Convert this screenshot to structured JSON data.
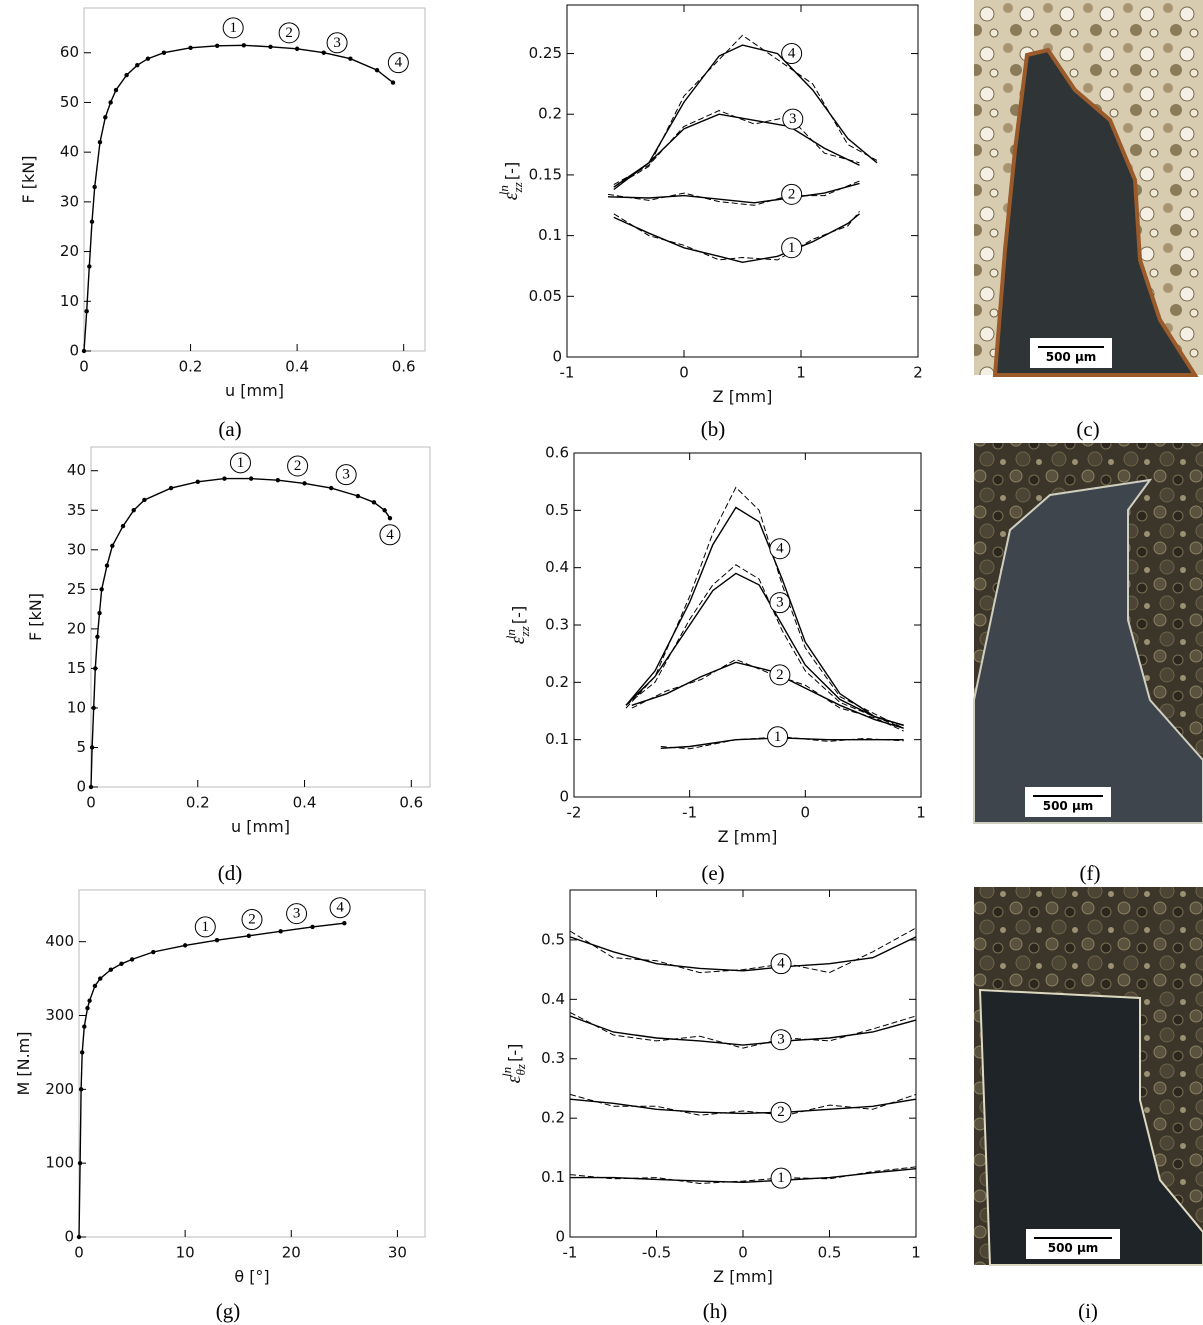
{
  "chart_data": [
    {
      "type": "scatter",
      "caption": "(a)",
      "x_label": "u [mm]",
      "y_label": "F [kN]",
      "xlim": [
        0,
        0.64
      ],
      "ylim": [
        0,
        69
      ],
      "xticks": [
        0,
        0.2,
        0.4,
        0.6
      ],
      "yticks": [
        0,
        10,
        20,
        30,
        40,
        50,
        60
      ],
      "series": [
        {
          "color": "#000000",
          "style": "solid",
          "x": [
            0,
            0.005,
            0.01,
            0.015,
            0.02,
            0.03,
            0.04,
            0.05,
            0.06,
            0.08,
            0.1,
            0.12,
            0.15,
            0.2,
            0.25,
            0.3,
            0.35,
            0.4,
            0.45,
            0.5,
            0.55,
            0.58
          ],
          "y": [
            0,
            8,
            17,
            26,
            33,
            42,
            47,
            50,
            52.5,
            55.5,
            57.5,
            58.8,
            60,
            61,
            61.4,
            61.5,
            61.2,
            60.8,
            60,
            58.8,
            56.5,
            54
          ]
        }
      ],
      "annotations": [
        {
          "text": "1",
          "x": 0.28,
          "y": 65
        },
        {
          "text": "2",
          "x": 0.385,
          "y": 64
        },
        {
          "text": "3",
          "x": 0.475,
          "y": 62
        },
        {
          "text": "4",
          "x": 0.59,
          "y": 58
        }
      ]
    },
    {
      "type": "line",
      "caption": "(b)",
      "x_label": "Z [mm]",
      "y_label": {
        "symbol": "ε",
        "sub": "zz",
        "sup": "ln",
        "unit": "[-]"
      },
      "xlim": [
        -1,
        2
      ],
      "ylim": [
        0,
        0.29
      ],
      "xticks": [
        -1,
        0,
        1,
        2
      ],
      "yticks": [
        0,
        0.05,
        0.1,
        0.15,
        0.2,
        0.25
      ],
      "series": [
        {
          "color": "#000000",
          "style": "solid",
          "x": [
            -0.6,
            -0.3,
            0,
            0.3,
            0.5,
            0.8,
            1.1,
            1.4,
            1.5
          ],
          "y": [
            0.115,
            0.102,
            0.09,
            0.083,
            0.078,
            0.083,
            0.095,
            0.11,
            0.118
          ]
        },
        {
          "color": "#000000",
          "style": "dashed",
          "x": [
            -0.6,
            -0.3,
            0,
            0.3,
            0.5,
            0.8,
            1.1,
            1.4,
            1.5
          ],
          "y": [
            0.118,
            0.1,
            0.092,
            0.08,
            0.082,
            0.08,
            0.097,
            0.108,
            0.12
          ]
        },
        {
          "color": "#000000",
          "style": "solid",
          "x": [
            -0.65,
            -0.3,
            0,
            0.3,
            0.6,
            0.9,
            1.2,
            1.5
          ],
          "y": [
            0.132,
            0.131,
            0.133,
            0.13,
            0.127,
            0.131,
            0.135,
            0.143
          ]
        },
        {
          "color": "#000000",
          "style": "dashed",
          "x": [
            -0.65,
            -0.3,
            0,
            0.3,
            0.6,
            0.9,
            1.2,
            1.5
          ],
          "y": [
            0.134,
            0.129,
            0.135,
            0.128,
            0.125,
            0.133,
            0.133,
            0.145
          ]
        },
        {
          "color": "#000000",
          "style": "solid",
          "x": [
            -0.6,
            -0.3,
            0,
            0.3,
            0.6,
            0.9,
            1.2,
            1.5
          ],
          "y": [
            0.14,
            0.16,
            0.188,
            0.2,
            0.195,
            0.19,
            0.172,
            0.158
          ]
        },
        {
          "color": "#000000",
          "style": "dashed",
          "x": [
            -0.6,
            -0.3,
            0,
            0.3,
            0.6,
            0.9,
            1.2,
            1.5
          ],
          "y": [
            0.142,
            0.158,
            0.19,
            0.203,
            0.192,
            0.198,
            0.168,
            0.16
          ]
        },
        {
          "color": "#000000",
          "style": "solid",
          "x": [
            -0.6,
            -0.3,
            0,
            0.3,
            0.5,
            0.8,
            1.1,
            1.4,
            1.65
          ],
          "y": [
            0.138,
            0.16,
            0.21,
            0.248,
            0.257,
            0.25,
            0.22,
            0.18,
            0.16
          ]
        },
        {
          "color": "#000000",
          "style": "dashed",
          "x": [
            -0.6,
            -0.3,
            0,
            0.3,
            0.5,
            0.8,
            1.1,
            1.4,
            1.65
          ],
          "y": [
            0.14,
            0.157,
            0.215,
            0.245,
            0.265,
            0.245,
            0.225,
            0.175,
            0.162
          ]
        }
      ],
      "annotations": [
        {
          "text": "1",
          "x": 0.92,
          "y": 0.09
        },
        {
          "text": "2",
          "x": 0.92,
          "y": 0.134
        },
        {
          "text": "3",
          "x": 0.93,
          "y": 0.196
        },
        {
          "text": "4",
          "x": 0.92,
          "y": 0.25
        }
      ]
    },
    {
      "type": "scatter",
      "caption": "(d)",
      "x_label": "u [mm]",
      "y_label": "F [kN]",
      "xlim": [
        0,
        0.635
      ],
      "ylim": [
        0,
        43
      ],
      "xticks": [
        0,
        0.2,
        0.4,
        0.6
      ],
      "yticks": [
        0,
        5,
        10,
        15,
        20,
        25,
        30,
        35,
        40
      ],
      "series": [
        {
          "color": "#000000",
          "style": "solid",
          "x": [
            0,
            0.002,
            0.005,
            0.008,
            0.012,
            0.016,
            0.02,
            0.03,
            0.04,
            0.06,
            0.08,
            0.1,
            0.15,
            0.2,
            0.25,
            0.3,
            0.35,
            0.4,
            0.45,
            0.5,
            0.53,
            0.55,
            0.56
          ],
          "y": [
            0,
            5,
            10,
            15,
            19,
            22,
            25,
            28,
            30.5,
            33,
            35,
            36.3,
            37.8,
            38.6,
            39,
            39,
            38.8,
            38.4,
            37.8,
            36.8,
            36,
            35,
            34
          ]
        }
      ],
      "annotations": [
        {
          "text": "1",
          "x": 0.28,
          "y": 41
        },
        {
          "text": "2",
          "x": 0.387,
          "y": 40.6
        },
        {
          "text": "3",
          "x": 0.478,
          "y": 39.5
        },
        {
          "text": "4",
          "x": 0.56,
          "y": 31.9
        }
      ]
    },
    {
      "type": "line",
      "caption": "(e)",
      "x_label": "Z [mm]",
      "y_label": {
        "symbol": "ε",
        "sub": "zz",
        "sup": "ln",
        "unit": "[-]"
      },
      "xlim": [
        -2,
        1
      ],
      "ylim": [
        0,
        0.6
      ],
      "xticks": [
        -2,
        -1,
        0,
        1
      ],
      "yticks": [
        0,
        0.1,
        0.2,
        0.3,
        0.4,
        0.5,
        0.6
      ],
      "series": [
        {
          "color": "#000000",
          "style": "solid",
          "x": [
            -1.25,
            -1,
            -0.6,
            -0.2,
            0.2,
            0.5,
            0.85
          ],
          "y": [
            0.085,
            0.088,
            0.1,
            0.103,
            0.1,
            0.1,
            0.1
          ]
        },
        {
          "color": "#000000",
          "style": "dashed",
          "x": [
            -1.25,
            -1,
            -0.6,
            -0.2,
            0.2,
            0.5,
            0.85
          ],
          "y": [
            0.088,
            0.084,
            0.1,
            0.105,
            0.097,
            0.102,
            0.098
          ]
        },
        {
          "color": "#000000",
          "style": "solid",
          "x": [
            -1.5,
            -1.2,
            -0.9,
            -0.6,
            -0.3,
            0,
            0.3,
            0.6,
            0.85
          ],
          "y": [
            0.16,
            0.18,
            0.21,
            0.235,
            0.22,
            0.19,
            0.16,
            0.135,
            0.12
          ]
        },
        {
          "color": "#000000",
          "style": "dashed",
          "x": [
            -1.5,
            -1.2,
            -0.9,
            -0.6,
            -0.3,
            0,
            0.3,
            0.6,
            0.85
          ],
          "y": [
            0.155,
            0.185,
            0.205,
            0.24,
            0.215,
            0.195,
            0.155,
            0.138,
            0.115
          ]
        },
        {
          "color": "#000000",
          "style": "solid",
          "x": [
            -1.55,
            -1.3,
            -1,
            -0.8,
            -0.6,
            -0.4,
            -0.2,
            0,
            0.3,
            0.6,
            0.85
          ],
          "y": [
            0.16,
            0.21,
            0.3,
            0.36,
            0.39,
            0.37,
            0.3,
            0.23,
            0.17,
            0.14,
            0.125
          ]
        },
        {
          "color": "#000000",
          "style": "dashed",
          "x": [
            -1.55,
            -1.3,
            -1,
            -0.8,
            -0.6,
            -0.4,
            -0.2,
            0,
            0.3,
            0.6,
            0.85
          ],
          "y": [
            0.16,
            0.2,
            0.31,
            0.37,
            0.405,
            0.38,
            0.29,
            0.22,
            0.165,
            0.14,
            0.12
          ]
        },
        {
          "color": "#000000",
          "style": "solid",
          "x": [
            -1.55,
            -1.3,
            -1,
            -0.8,
            -0.6,
            -0.4,
            -0.2,
            0,
            0.3,
            0.6,
            0.85
          ],
          "y": [
            0.16,
            0.22,
            0.34,
            0.44,
            0.505,
            0.48,
            0.38,
            0.27,
            0.18,
            0.14,
            0.125
          ]
        },
        {
          "color": "#000000",
          "style": "dashed",
          "x": [
            -1.55,
            -1.3,
            -1,
            -0.8,
            -0.6,
            -0.4,
            -0.2,
            0,
            0.3,
            0.6,
            0.85
          ],
          "y": [
            0.155,
            0.21,
            0.35,
            0.46,
            0.54,
            0.5,
            0.37,
            0.26,
            0.175,
            0.145,
            0.12
          ]
        }
      ],
      "annotations": [
        {
          "text": "1",
          "x": -0.24,
          "y": 0.105
        },
        {
          "text": "2",
          "x": -0.22,
          "y": 0.213
        },
        {
          "text": "3",
          "x": -0.22,
          "y": 0.339
        },
        {
          "text": "4",
          "x": -0.22,
          "y": 0.433
        }
      ]
    },
    {
      "type": "scatter",
      "caption": "(g)",
      "x_label": "θ [°]",
      "y_label": "M [N.m]",
      "xlim": [
        0,
        32.6
      ],
      "ylim": [
        0,
        470
      ],
      "xticks": [
        0,
        10,
        20,
        30
      ],
      "yticks": [
        0,
        100,
        200,
        300,
        400
      ],
      "series": [
        {
          "color": "#000000",
          "style": "solid",
          "x": [
            0,
            0.1,
            0.2,
            0.3,
            0.5,
            0.8,
            1,
            1.5,
            2,
            3,
            4,
            5,
            7,
            10,
            13,
            16,
            19,
            22,
            25
          ],
          "y": [
            0,
            100,
            200,
            250,
            285,
            310,
            320,
            340,
            350,
            362,
            370,
            376,
            386,
            395,
            402,
            408,
            414,
            420,
            425
          ]
        }
      ],
      "annotations": [
        {
          "text": "1",
          "x": 11.9,
          "y": 420
        },
        {
          "text": "2",
          "x": 16.3,
          "y": 430
        },
        {
          "text": "3",
          "x": 20.5,
          "y": 438
        },
        {
          "text": "4",
          "x": 24.6,
          "y": 446
        }
      ]
    },
    {
      "type": "line",
      "caption": "(h)",
      "x_label": "Z [mm]",
      "y_label": {
        "symbol": "ε",
        "sub": "θz",
        "sup": "ln",
        "unit": "[-]"
      },
      "xlim": [
        -1,
        1
      ],
      "ylim": [
        0,
        0.584
      ],
      "xticks": [
        -1,
        -0.5,
        0,
        0.5,
        1
      ],
      "yticks": [
        0,
        0.1,
        0.2,
        0.3,
        0.4,
        0.5
      ],
      "series": [
        {
          "color": "#000000",
          "style": "solid",
          "x": [
            -1,
            -0.75,
            -0.5,
            -0.25,
            0,
            0.25,
            0.5,
            0.75,
            1
          ],
          "y": [
            0.1,
            0.1,
            0.097,
            0.094,
            0.092,
            0.096,
            0.1,
            0.108,
            0.115
          ]
        },
        {
          "color": "#000000",
          "style": "dashed",
          "x": [
            -1,
            -0.75,
            -0.5,
            -0.25,
            0,
            0.25,
            0.5,
            0.75,
            1
          ],
          "y": [
            0.105,
            0.098,
            0.1,
            0.09,
            0.094,
            0.1,
            0.098,
            0.11,
            0.118
          ]
        },
        {
          "color": "#000000",
          "style": "solid",
          "x": [
            -1,
            -0.75,
            -0.5,
            -0.25,
            0,
            0.25,
            0.5,
            0.75,
            1
          ],
          "y": [
            0.232,
            0.225,
            0.215,
            0.21,
            0.208,
            0.21,
            0.215,
            0.22,
            0.232
          ]
        },
        {
          "color": "#000000",
          "style": "dashed",
          "x": [
            -1,
            -0.75,
            -0.5,
            -0.25,
            0,
            0.25,
            0.5,
            0.75,
            1
          ],
          "y": [
            0.24,
            0.22,
            0.22,
            0.205,
            0.212,
            0.205,
            0.222,
            0.215,
            0.24
          ]
        },
        {
          "color": "#000000",
          "style": "solid",
          "x": [
            -1,
            -0.75,
            -0.5,
            -0.25,
            0,
            0.25,
            0.5,
            0.75,
            1
          ],
          "y": [
            0.372,
            0.345,
            0.335,
            0.33,
            0.323,
            0.33,
            0.335,
            0.345,
            0.365
          ]
        },
        {
          "color": "#000000",
          "style": "dashed",
          "x": [
            -1,
            -0.75,
            -0.5,
            -0.25,
            0,
            0.25,
            0.5,
            0.75,
            1
          ],
          "y": [
            0.378,
            0.34,
            0.33,
            0.338,
            0.318,
            0.335,
            0.33,
            0.35,
            0.372
          ]
        },
        {
          "color": "#000000",
          "style": "solid",
          "x": [
            -1,
            -0.75,
            -0.5,
            -0.25,
            0,
            0.25,
            0.5,
            0.75,
            1
          ],
          "y": [
            0.505,
            0.48,
            0.46,
            0.452,
            0.448,
            0.455,
            0.46,
            0.47,
            0.505
          ]
        },
        {
          "color": "#000000",
          "style": "dashed",
          "x": [
            -1,
            -0.75,
            -0.5,
            -0.25,
            0,
            0.25,
            0.5,
            0.75,
            1
          ],
          "y": [
            0.515,
            0.47,
            0.465,
            0.445,
            0.45,
            0.46,
            0.445,
            0.48,
            0.52
          ]
        }
      ],
      "annotations": [
        {
          "text": "1",
          "x": 0.22,
          "y": 0.099
        },
        {
          "text": "2",
          "x": 0.22,
          "y": 0.21
        },
        {
          "text": "3",
          "x": 0.22,
          "y": 0.332
        },
        {
          "text": "4",
          "x": 0.22,
          "y": 0.46
        }
      ]
    }
  ],
  "images": [
    {
      "caption": "(c)",
      "scale_bar": "500 µm"
    },
    {
      "caption": "(f)",
      "scale_bar": "500 µm"
    },
    {
      "caption": "(i)",
      "scale_bar": "500 µm"
    }
  ]
}
